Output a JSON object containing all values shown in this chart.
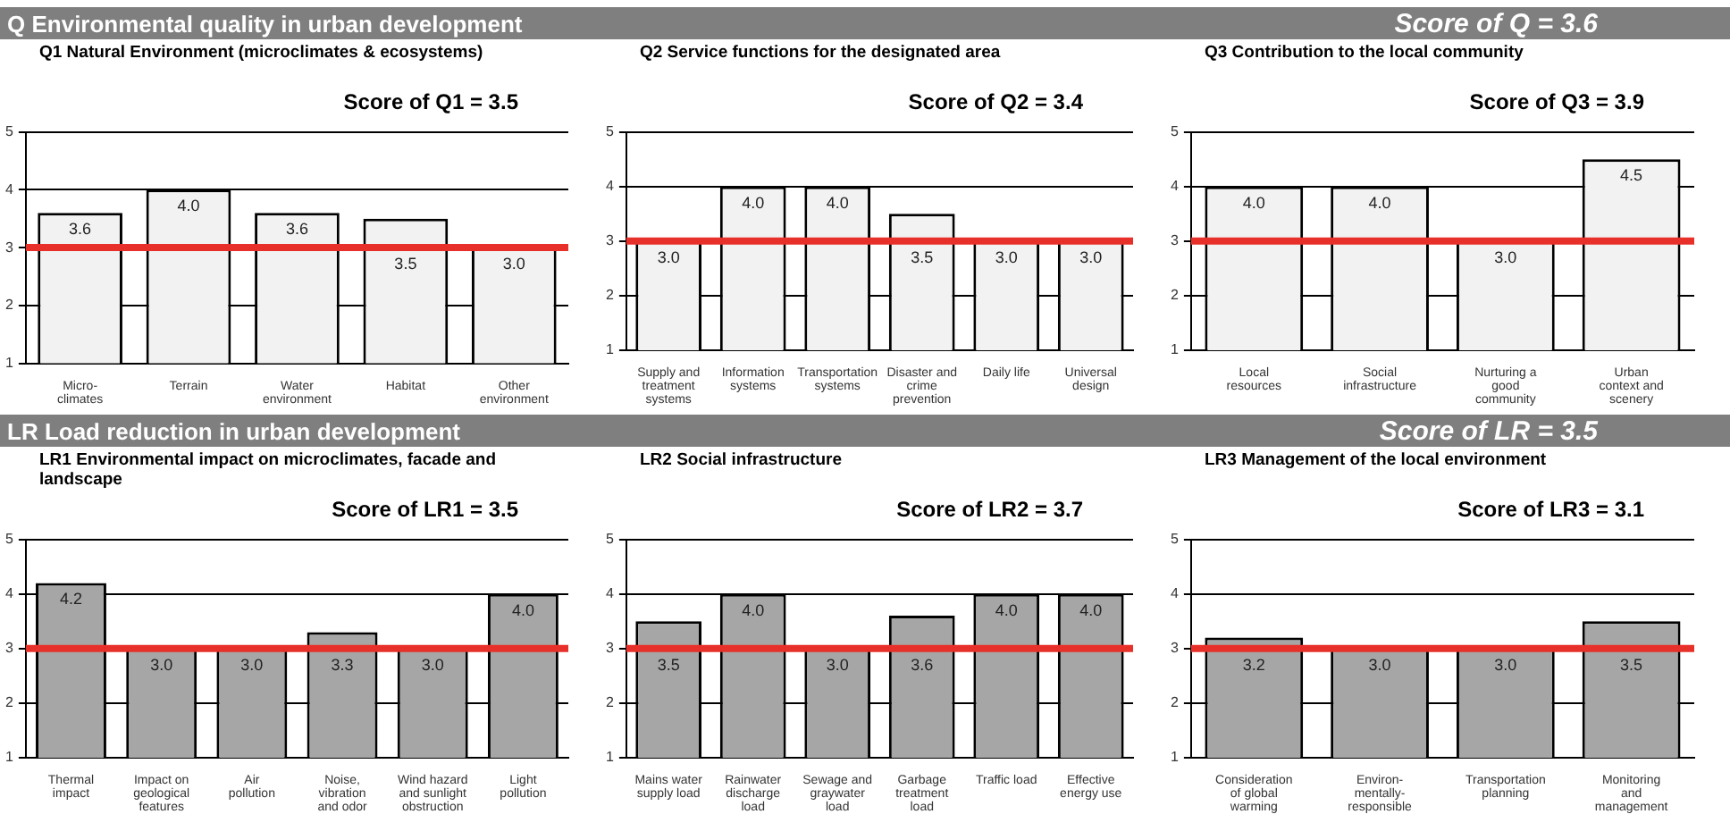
{
  "chart_data": [
    {
      "type": "bar",
      "title": "Q1 Natural Environment (microclimates & ecosystems)",
      "subtitle": "Score of Q1 = 3.5",
      "annotations": [
        "Q Environmental quality in urban development"
      ],
      "categories": [
        "Micro-climates",
        "Terrain",
        "Water environment",
        "Habitat",
        "Other environment"
      ],
      "values": [
        3.6,
        4.0,
        3.6,
        3.5,
        3.0
      ],
      "value_labels": [
        "3.6",
        "4.0",
        "3.6",
        "3.5",
        "3.0"
      ],
      "color": "#f2f2f2",
      "ylim": [
        1,
        5
      ],
      "yticks": [
        1,
        2,
        3,
        4,
        5
      ],
      "grid": "y",
      "ref_lines": [
        {
          "axis": "y",
          "value": 3,
          "color": "#e8302a"
        }
      ]
    },
    {
      "type": "bar",
      "title": "Q2 Service functions for the designated area",
      "subtitle": "Score of Q2 = 3.4",
      "categories": [
        "Supply and treatment systems",
        "Information systems",
        "Transportation systems",
        "Disaster and crime prevention",
        "Daily life",
        "Universal design"
      ],
      "values": [
        3.0,
        4.0,
        4.0,
        3.5,
        3.0,
        3.0
      ],
      "value_labels": [
        "3.0",
        "4.0",
        "4.0",
        "3.5",
        "3.0",
        "3.0"
      ],
      "color": "#f2f2f2",
      "ylim": [
        1,
        5
      ],
      "yticks": [
        1,
        2,
        3,
        4,
        5
      ],
      "grid": "y",
      "ref_lines": [
        {
          "axis": "y",
          "value": 3,
          "color": "#e8302a"
        }
      ]
    },
    {
      "type": "bar",
      "title": "Q3 Contribution to the local community",
      "subtitle": "Score of Q3 = 3.9",
      "annotations": [
        "Score of Q = 3.6"
      ],
      "categories": [
        "Local resources",
        "Social infrastructure",
        "Nurturing a good community",
        "Urban context and scenery"
      ],
      "values": [
        4.0,
        4.0,
        3.0,
        4.5
      ],
      "value_labels": [
        "4.0",
        "4.0",
        "3.0",
        "4.5"
      ],
      "color": "#f2f2f2",
      "ylim": [
        1,
        5
      ],
      "yticks": [
        1,
        2,
        3,
        4,
        5
      ],
      "grid": "y",
      "ref_lines": [
        {
          "axis": "y",
          "value": 3,
          "color": "#e8302a"
        }
      ]
    },
    {
      "type": "bar",
      "title": "LR1 Environmental impact on microclimates, facade and landscape",
      "subtitle": "Score of LR1 = 3.5",
      "annotations": [
        "LR Load reduction in urban development"
      ],
      "categories": [
        "Thermal impact",
        "Impact on geological features",
        "Air pollution",
        "Noise, vibration and odor",
        "Wind hazard and sunlight obstruction",
        "Light pollution"
      ],
      "values": [
        4.2,
        3.0,
        3.0,
        3.3,
        3.0,
        4.0
      ],
      "value_labels": [
        "4.2",
        "3.0",
        "3.0",
        "3.3",
        "3.0",
        "4.0"
      ],
      "color": "#a6a6a6",
      "ylim": [
        1,
        5
      ],
      "yticks": [
        1,
        2,
        3,
        4,
        5
      ],
      "grid": "y",
      "ref_lines": [
        {
          "axis": "y",
          "value": 3,
          "color": "#e8302a"
        }
      ]
    },
    {
      "type": "bar",
      "title": "LR2 Social infrastructure",
      "subtitle": "Score of LR2 = 3.7",
      "categories": [
        "Mains water supply load",
        "Rainwater discharge load",
        "Sewage and graywater load",
        "Garbage treatment load",
        "Traffic load",
        "Effective energy use"
      ],
      "values": [
        3.5,
        4.0,
        3.0,
        3.6,
        4.0,
        4.0
      ],
      "value_labels": [
        "3.5",
        "4.0",
        "3.0",
        "3.6",
        "4.0",
        "4.0"
      ],
      "color": "#a6a6a6",
      "ylim": [
        1,
        5
      ],
      "yticks": [
        1,
        2,
        3,
        4,
        5
      ],
      "grid": "y",
      "ref_lines": [
        {
          "axis": "y",
          "value": 3,
          "color": "#e8302a"
        }
      ]
    },
    {
      "type": "bar",
      "title": "LR3 Management of the local environment",
      "subtitle": "Score of LR3 = 3.1",
      "annotations": [
        "Score of LR = 3.5"
      ],
      "categories": [
        "Consideration of global warming",
        "Environ-mentally-responsible",
        "Transportation planning",
        "Monitoring and management"
      ],
      "values": [
        3.2,
        3.0,
        3.0,
        3.5
      ],
      "value_labels": [
        "3.2",
        "3.0",
        "3.0",
        "3.5"
      ],
      "color": "#a6a6a6",
      "ylim": [
        1,
        5
      ],
      "yticks": [
        1,
        2,
        3,
        4,
        5
      ],
      "grid": "y",
      "ref_lines": [
        {
          "axis": "y",
          "value": 3,
          "color": "#e8302a"
        }
      ]
    }
  ]
}
